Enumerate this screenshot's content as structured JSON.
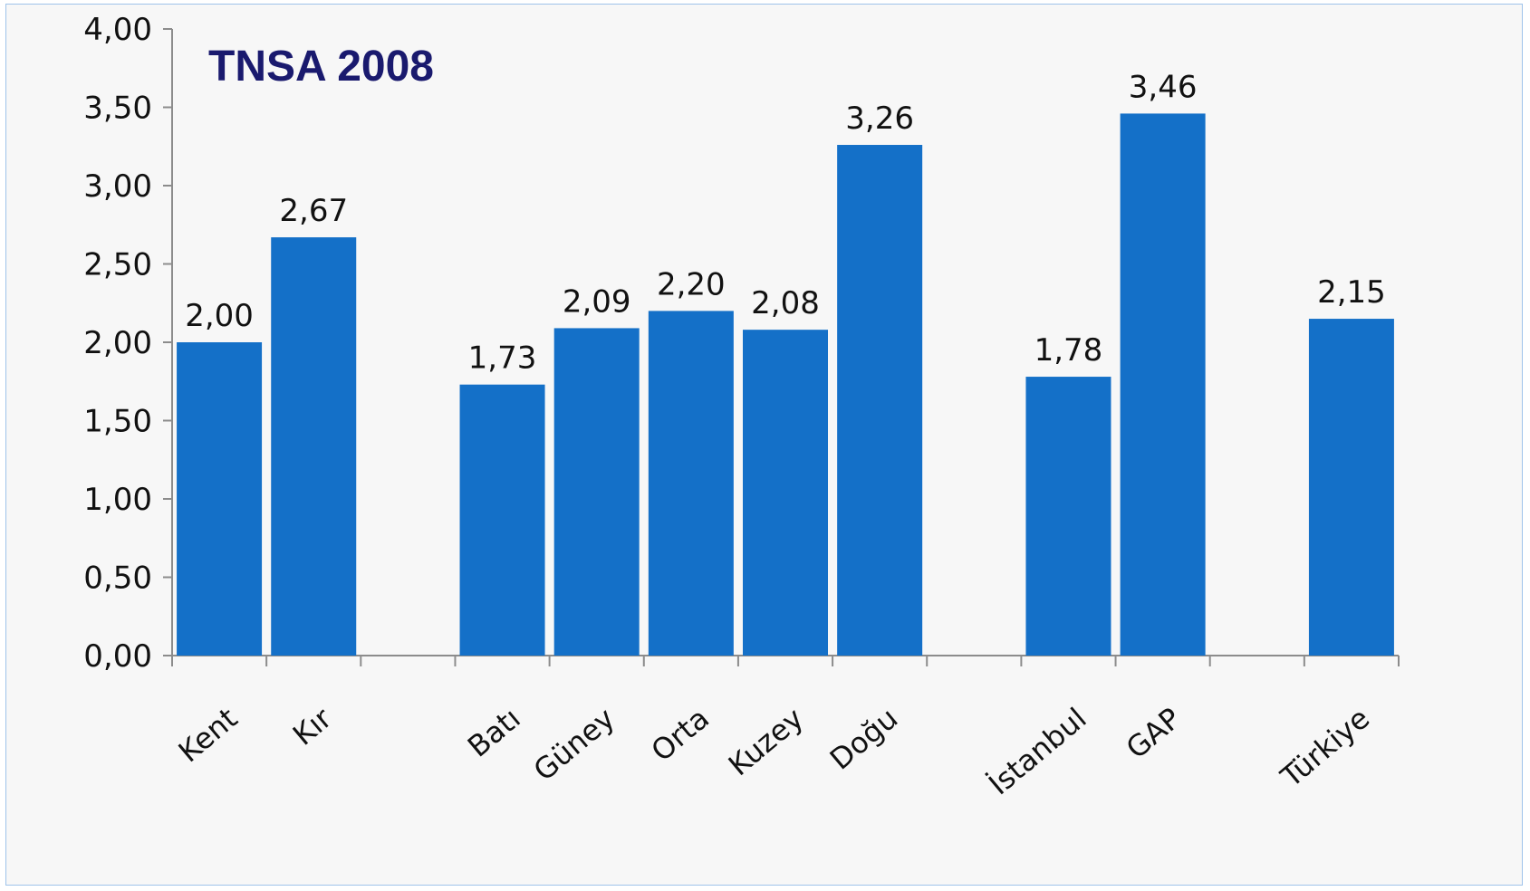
{
  "chart_data": {
    "type": "bar",
    "title": "TNSA 2008",
    "categories": [
      "Kent",
      "Kır",
      "",
      "Batı",
      "Güney",
      "Orta",
      "Kuzey",
      "Doğu",
      "",
      "İstanbul",
      "GAP",
      "",
      "Türkiye"
    ],
    "values": [
      2.0,
      2.67,
      null,
      1.73,
      2.09,
      2.2,
      2.08,
      3.26,
      null,
      1.78,
      3.46,
      null,
      2.15
    ],
    "value_labels": [
      "2,00",
      "2,67",
      "",
      "1,73",
      "2,09",
      "2,20",
      "2,08",
      "3,26",
      "",
      "1,78",
      "3,46",
      "",
      "2,15"
    ],
    "ylim": [
      0,
      4
    ],
    "yticks": [
      "0,00",
      "0,50",
      "1,00",
      "1,50",
      "2,00",
      "2,50",
      "3,00",
      "3,50",
      "4,00"
    ],
    "xlabel": "",
    "ylabel": "",
    "grid": false,
    "legend": "none",
    "bar_color": "#1470c8"
  }
}
